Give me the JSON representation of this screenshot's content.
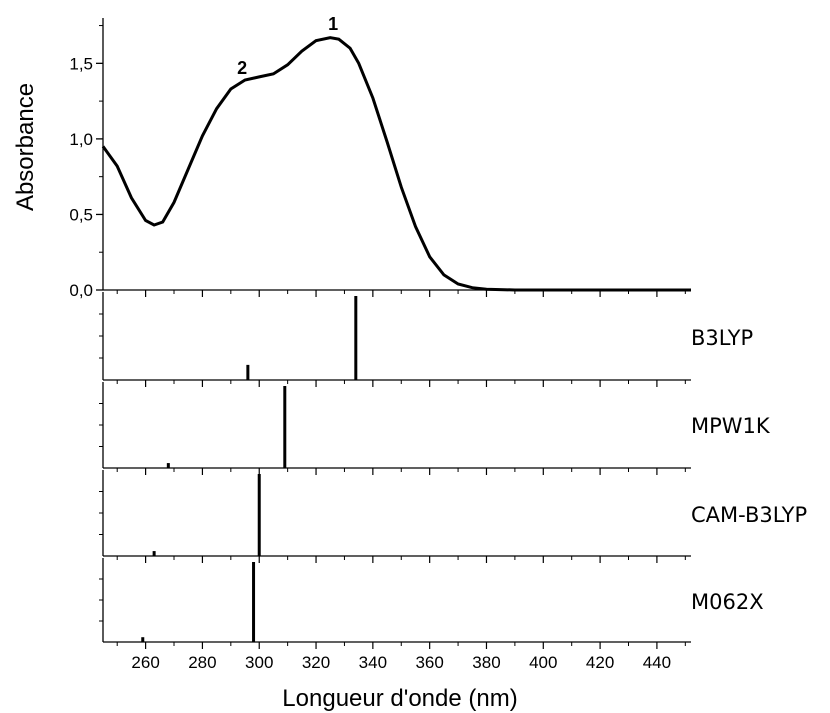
{
  "chart_data": {
    "type": "line",
    "xlabel": "Longueur d'onde (nm)",
    "ylabel": "Absorbance",
    "xlim": [
      245,
      452
    ],
    "x_ticks": [
      260,
      280,
      300,
      320,
      340,
      360,
      380,
      400,
      420,
      440
    ],
    "top_panel": {
      "ylim": [
        0,
        1.8
      ],
      "y_ticks": [
        {
          "value": 0.0,
          "label": "0,0"
        },
        {
          "value": 0.5,
          "label": "0,5"
        },
        {
          "value": 1.0,
          "label": "1,0"
        },
        {
          "value": 1.5,
          "label": "1,5"
        }
      ],
      "spectrum": [
        [
          245,
          0.95
        ],
        [
          250,
          0.82
        ],
        [
          255,
          0.61
        ],
        [
          260,
          0.46
        ],
        [
          263,
          0.43
        ],
        [
          266,
          0.45
        ],
        [
          270,
          0.58
        ],
        [
          275,
          0.8
        ],
        [
          280,
          1.02
        ],
        [
          285,
          1.2
        ],
        [
          290,
          1.33
        ],
        [
          295,
          1.39
        ],
        [
          300,
          1.41
        ],
        [
          305,
          1.43
        ],
        [
          310,
          1.49
        ],
        [
          315,
          1.58
        ],
        [
          320,
          1.65
        ],
        [
          325,
          1.67
        ],
        [
          328,
          1.66
        ],
        [
          332,
          1.6
        ],
        [
          335,
          1.5
        ],
        [
          340,
          1.27
        ],
        [
          345,
          0.98
        ],
        [
          350,
          0.68
        ],
        [
          355,
          0.42
        ],
        [
          360,
          0.22
        ],
        [
          365,
          0.1
        ],
        [
          370,
          0.04
        ],
        [
          375,
          0.015
        ],
        [
          380,
          0.005
        ],
        [
          390,
          0.0
        ],
        [
          400,
          0.0
        ],
        [
          452,
          0.0
        ]
      ],
      "annotations": [
        {
          "text": "1",
          "x": 326,
          "y": 1.76
        },
        {
          "text": "2",
          "x": 294,
          "y": 1.47
        }
      ]
    },
    "stick_panels": [
      {
        "name": "B3LYP",
        "sticks": [
          {
            "x": 296,
            "rel": 0.18
          },
          {
            "x": 334,
            "rel": 1.0
          }
        ]
      },
      {
        "name": "MPW1K",
        "sticks": [
          {
            "x": 268,
            "rel": 0.06
          },
          {
            "x": 309,
            "rel": 1.0
          }
        ]
      },
      {
        "name": "CAM-B3LYP",
        "sticks": [
          {
            "x": 263,
            "rel": 0.06
          },
          {
            "x": 300,
            "rel": 1.0
          }
        ]
      },
      {
        "name": "M062X",
        "sticks": [
          {
            "x": 259,
            "rel": 0.06
          },
          {
            "x": 298,
            "rel": 1.0
          }
        ]
      }
    ]
  }
}
